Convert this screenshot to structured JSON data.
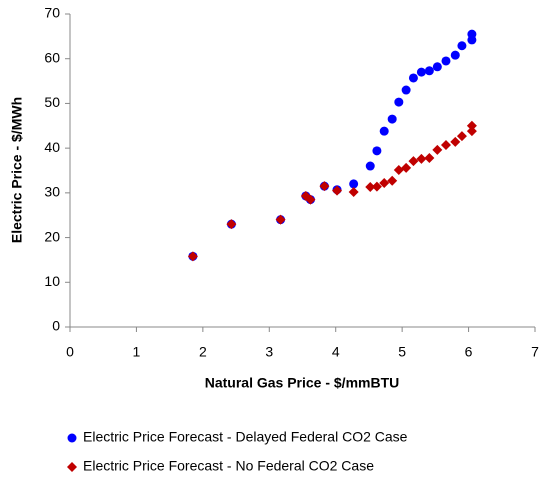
{
  "chart_data": {
    "type": "scatter",
    "xlabel": "Natural Gas Price - $/mmBTU",
    "ylabel": "Electric Price - $/MWh",
    "xlim": [
      0,
      7
    ],
    "xticks": [
      0,
      1,
      2,
      3,
      4,
      5,
      6,
      7
    ],
    "ylim": [
      0,
      70
    ],
    "yticks": [
      0,
      10,
      20,
      30,
      40,
      50,
      60,
      70
    ],
    "grid": false,
    "legend": "bottom",
    "series": [
      {
        "name": "Electric Price Forecast - Delayed Federal CO2 Case",
        "color": "#0000ff",
        "marker": "circle",
        "x": [
          1.85,
          2.43,
          3.17,
          3.55,
          3.62,
          3.83,
          4.02,
          4.27,
          4.52,
          4.62,
          4.73,
          4.85,
          4.95,
          5.06,
          5.17,
          5.29,
          5.41,
          5.53,
          5.66,
          5.8,
          5.9,
          6.05,
          6.05
        ],
        "values": [
          15.8,
          23,
          24,
          29.3,
          28.5,
          31.5,
          30.7,
          32,
          36,
          39.4,
          43.8,
          46.5,
          50.3,
          53,
          55.7,
          57,
          57.3,
          58.2,
          59.5,
          60.8,
          62.9,
          64.2,
          65.5
        ]
      },
      {
        "name": "Electric Price Forecast - No Federal CO2 Case",
        "color": "#c00000",
        "marker": "diamond",
        "x": [
          1.85,
          2.43,
          3.17,
          3.55,
          3.62,
          3.83,
          4.02,
          4.27,
          4.52,
          4.62,
          4.73,
          4.85,
          4.95,
          5.06,
          5.17,
          5.29,
          5.41,
          5.53,
          5.66,
          5.8,
          5.9,
          6.05,
          6.05
        ],
        "values": [
          15.8,
          23,
          24,
          29.3,
          28.5,
          31.5,
          30.5,
          30.2,
          31.3,
          31.4,
          32.2,
          32.7,
          35.1,
          35.6,
          37.1,
          37.6,
          37.8,
          39.6,
          40.7,
          41.4,
          42.7,
          43.8,
          45
        ]
      }
    ]
  }
}
